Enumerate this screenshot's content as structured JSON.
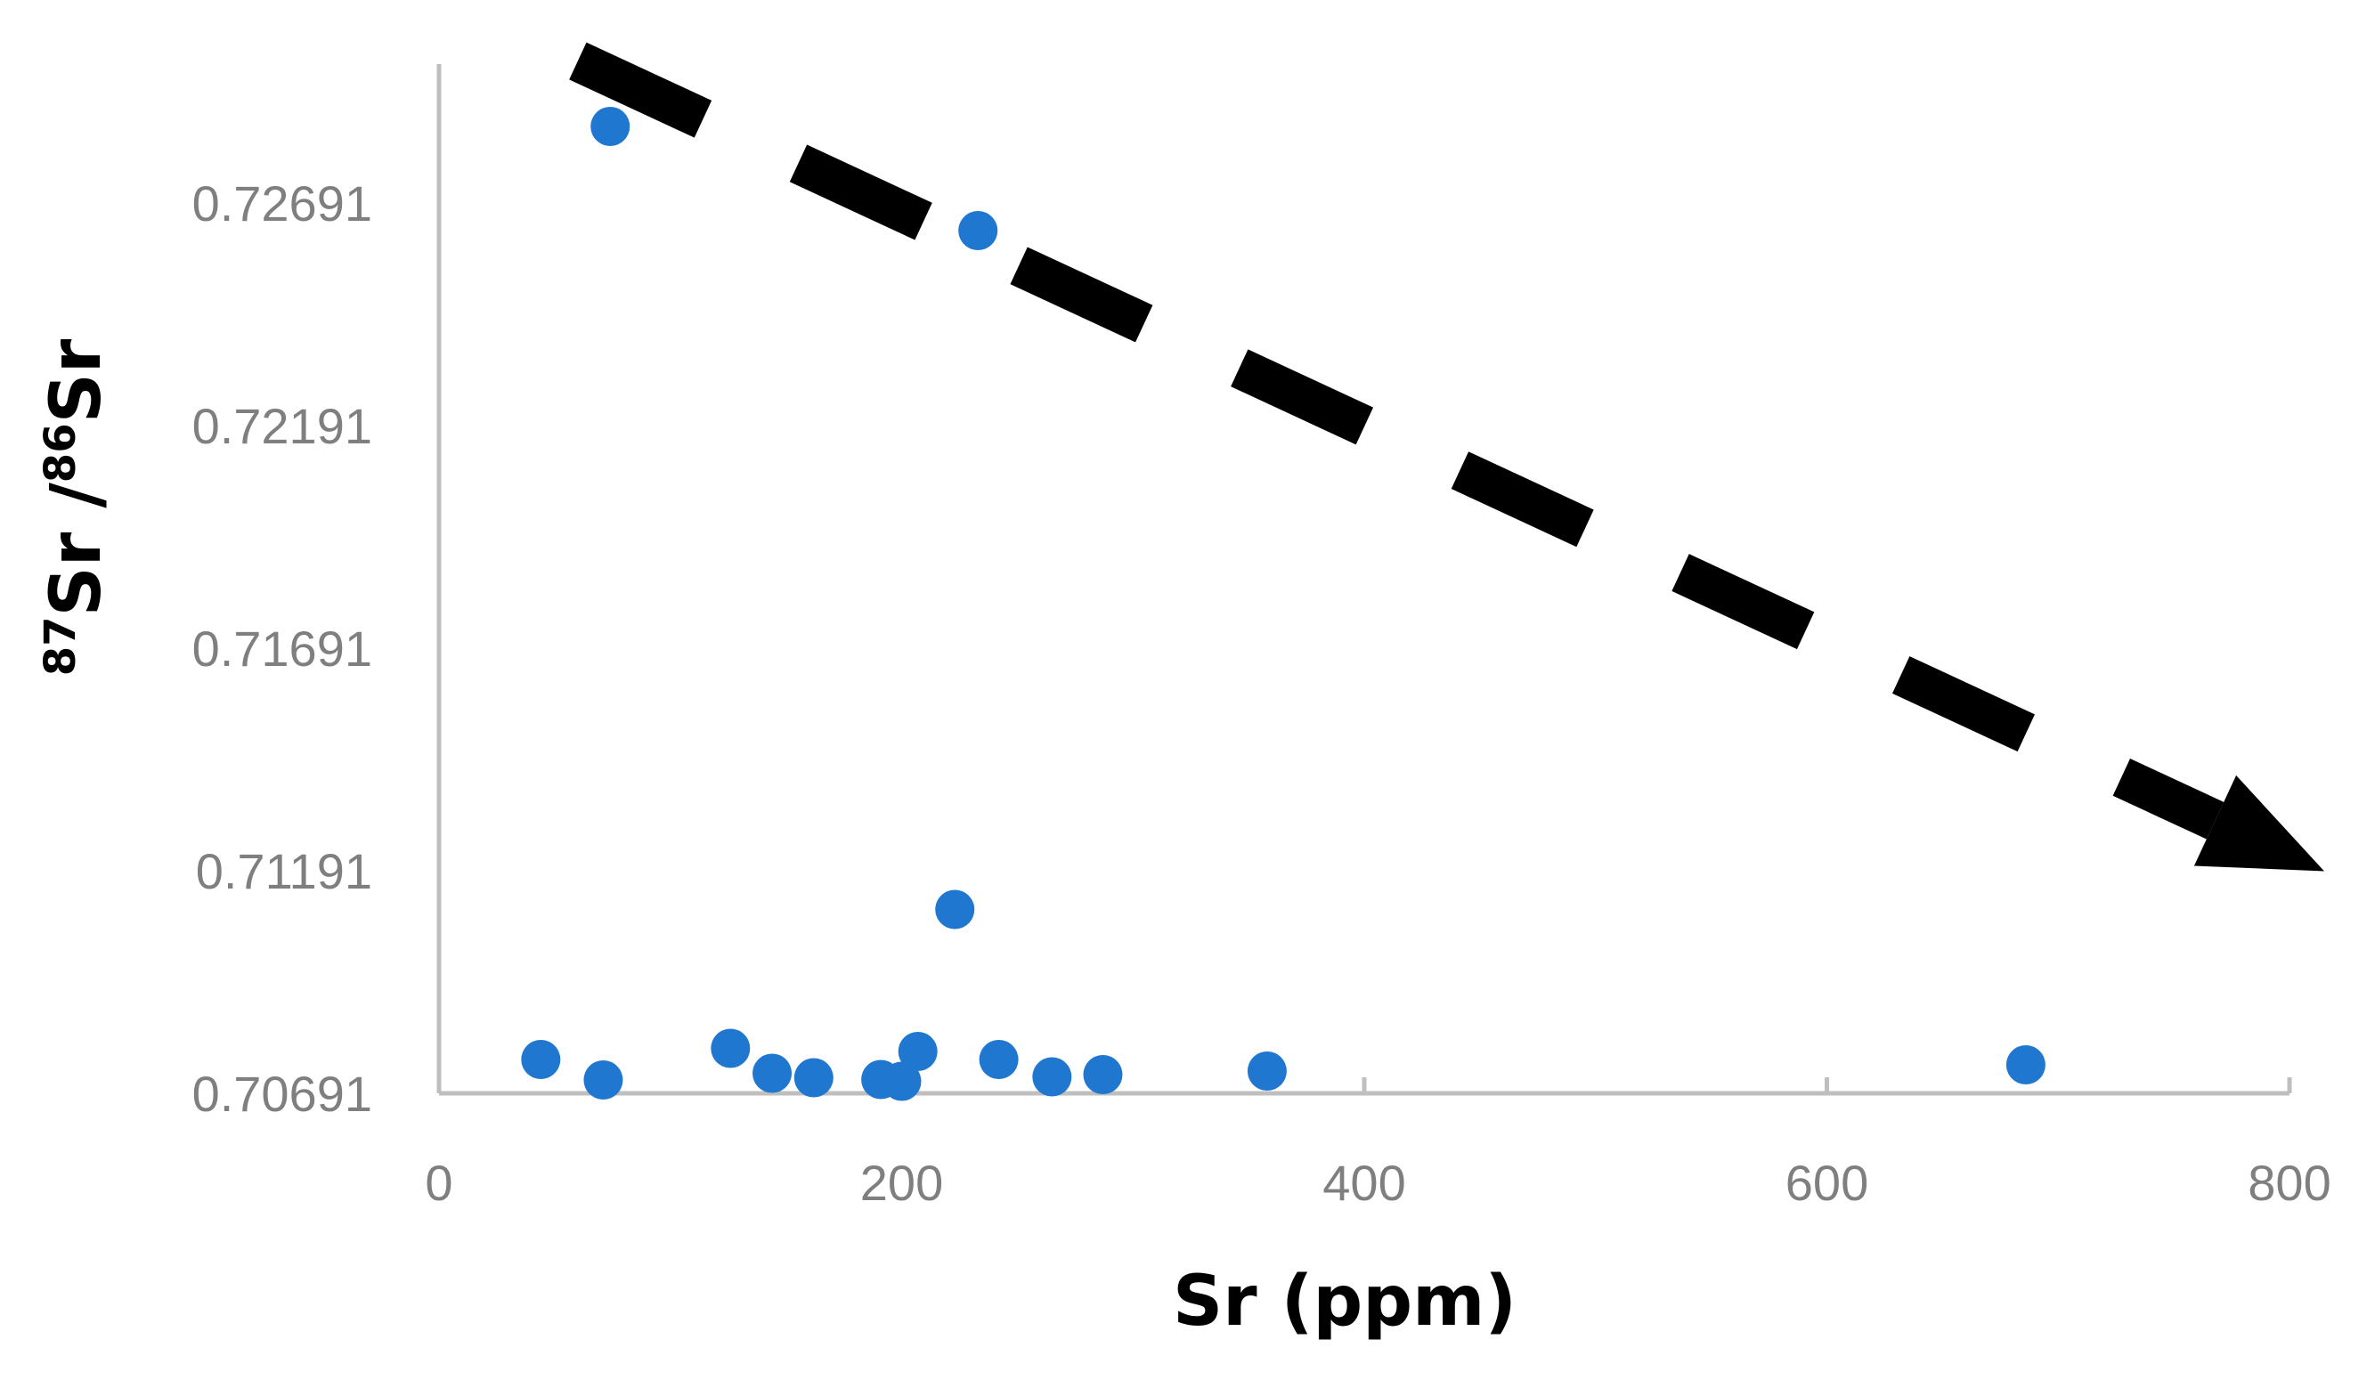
{
  "chart_data": {
    "type": "scatter",
    "xlabel": "Sr (ppm)",
    "ylabel": {
      "sup1": "87",
      "main1": "Sr /",
      "sup2": "86",
      "main2": "Sr"
    },
    "xlim": [
      0,
      800
    ],
    "ylim": [
      0.70691,
      0.72691
    ],
    "x_ticks": [
      {
        "value": 0,
        "label": "0"
      },
      {
        "value": 200,
        "label": "200"
      },
      {
        "value": 400,
        "label": "400"
      },
      {
        "value": 600,
        "label": "600"
      },
      {
        "value": 800,
        "label": "800"
      }
    ],
    "y_ticks": [
      {
        "value": 0.70691,
        "label": "0.70691"
      },
      {
        "value": 0.71191,
        "label": "0.71191"
      },
      {
        "value": 0.71691,
        "label": "0.71691"
      },
      {
        "value": 0.72191,
        "label": "0.72191"
      },
      {
        "value": 0.72691,
        "label": "0.72691"
      }
    ],
    "grid": false,
    "marker_color": "#1f77d0",
    "axis_color": "#bfbfbf",
    "trend_arrow": {
      "style": "dashed",
      "color": "#000000",
      "direction": "decreasing",
      "start": {
        "x": 60,
        "y": 0.7301
      },
      "end": {
        "x": 815,
        "y": 0.7119
      }
    },
    "series": [
      {
        "points": [
          {
            "x": 44,
            "y": 0.70767
          },
          {
            "x": 71,
            "y": 0.70721
          },
          {
            "x": 74,
            "y": 0.72863
          },
          {
            "x": 126,
            "y": 0.70792
          },
          {
            "x": 144,
            "y": 0.70736
          },
          {
            "x": 162,
            "y": 0.70726
          },
          {
            "x": 191,
            "y": 0.70722
          },
          {
            "x": 200,
            "y": 0.70718
          },
          {
            "x": 207,
            "y": 0.70785
          },
          {
            "x": 223,
            "y": 0.71104
          },
          {
            "x": 233,
            "y": 0.72629
          },
          {
            "x": 242,
            "y": 0.70767
          },
          {
            "x": 265,
            "y": 0.70728
          },
          {
            "x": 287,
            "y": 0.70733
          },
          {
            "x": 358,
            "y": 0.70741
          },
          {
            "x": 686,
            "y": 0.70755
          }
        ]
      }
    ]
  }
}
